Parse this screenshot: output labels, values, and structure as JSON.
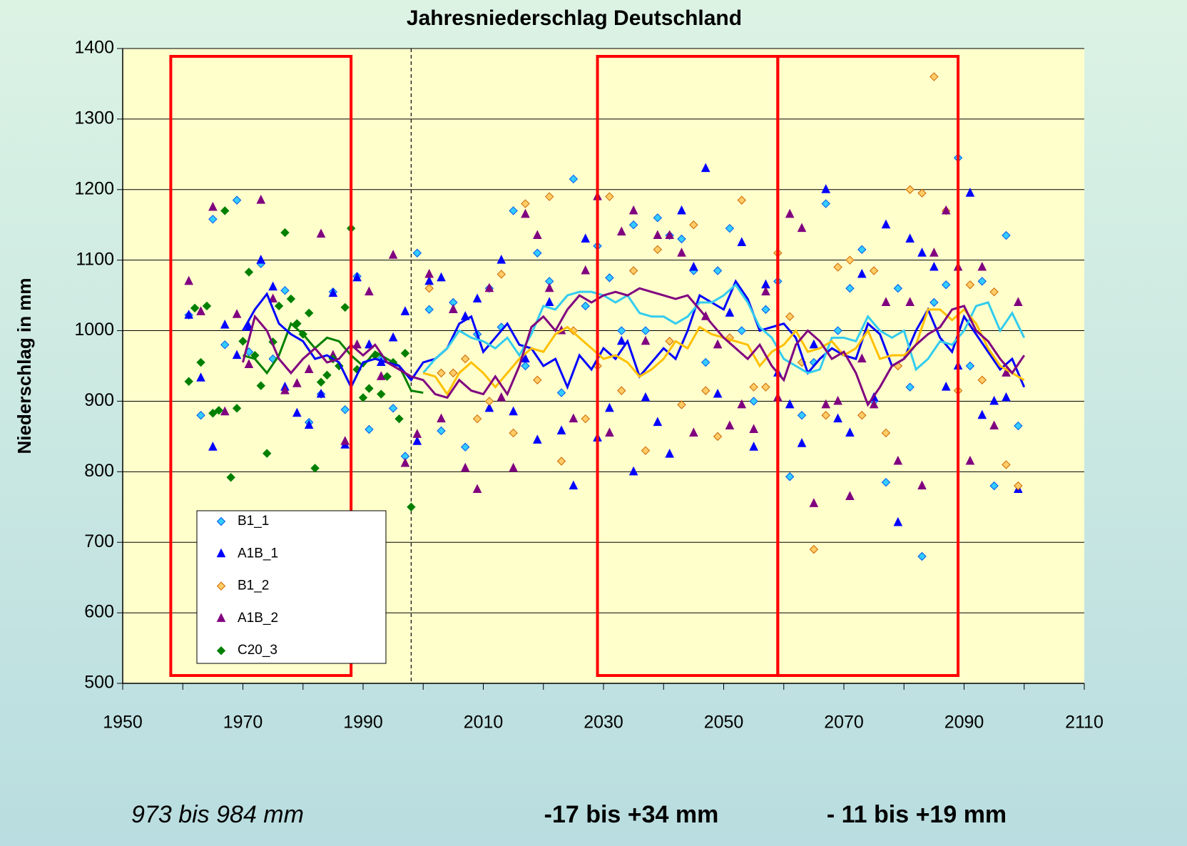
{
  "chart_data": {
    "type": "scatter",
    "title": "Jahresniederschlag Deutschland",
    "y_label": "Niederschlag in mm",
    "xlim": [
      1950,
      2110
    ],
    "xticks": [
      1950,
      1970,
      1990,
      2010,
      2030,
      2050,
      2070,
      2090,
      2110
    ],
    "ylim": [
      500,
      1400
    ],
    "yticks": [
      500,
      600,
      700,
      800,
      900,
      1000,
      1100,
      1200,
      1300,
      1400
    ],
    "grid": true,
    "highlight_ranges": [
      [
        1958,
        1988
      ],
      [
        2029,
        2059
      ],
      [
        2059,
        2089
      ]
    ],
    "divider_x": 1998,
    "annotations": [
      "973 bis 984 mm",
      "-17 bis +34 mm",
      "- 11 bis +19 mm"
    ],
    "series": [
      {
        "name": "B1_1",
        "marker": "diamond",
        "color": "#33ccff",
        "edge": "#0055ee",
        "x": [
          1961,
          1963,
          1965,
          1967,
          1969,
          1971,
          1973,
          1975,
          1977,
          1979,
          1981,
          1983,
          1985,
          1987,
          1989,
          1991,
          1993,
          1995,
          1997,
          1999,
          2001,
          2003,
          2005,
          2007,
          2009,
          2011,
          2013,
          2015,
          2017,
          2019,
          2021,
          2023,
          2025,
          2027,
          2029,
          2031,
          2033,
          2035,
          2037,
          2039,
          2041,
          2043,
          2045,
          2047,
          2049,
          2051,
          2053,
          2055,
          2057,
          2059,
          2061,
          2063,
          2065,
          2067,
          2069,
          2071,
          2073,
          2075,
          2077,
          2079,
          2081,
          2083,
          2085,
          2087,
          2089,
          2091,
          2093,
          2095,
          2097,
          2099
        ],
        "values": [
          1022,
          880,
          1158,
          980,
          1185,
          970,
          1095,
          960,
          1057,
          1010,
          870,
          910,
          1055,
          888,
          1077,
          860,
          960,
          890,
          822,
          1110,
          1030,
          858,
          1040,
          835,
          995,
          1060,
          1005,
          1170,
          950,
          1110,
          1070,
          912,
          1215,
          1035,
          1120,
          1075,
          1000,
          1150,
          1000,
          1160,
          1135,
          1130,
          1085,
          955,
          1085,
          1145,
          1000,
          900,
          1030,
          1070,
          793,
          880,
          955,
          1180,
          1000,
          1060,
          1115,
          900,
          785,
          1060,
          920,
          680,
          1040,
          1065,
          1245,
          950,
          1070,
          780,
          1135,
          865
        ]
      },
      {
        "name": "A1B_1",
        "marker": "triangle",
        "color": "#0000ff",
        "edge": "#0000ff",
        "x": [
          1961,
          1963,
          1965,
          1967,
          1969,
          1971,
          1973,
          1975,
          1977,
          1979,
          1981,
          1983,
          1985,
          1987,
          1989,
          1991,
          1993,
          1995,
          1997,
          1999,
          2001,
          2003,
          2005,
          2007,
          2009,
          2011,
          2013,
          2015,
          2017,
          2019,
          2021,
          2023,
          2025,
          2027,
          2029,
          2031,
          2033,
          2035,
          2037,
          2039,
          2041,
          2043,
          2045,
          2047,
          2049,
          2051,
          2053,
          2055,
          2057,
          2059,
          2061,
          2063,
          2065,
          2067,
          2069,
          2071,
          2073,
          2075,
          2077,
          2079,
          2081,
          2083,
          2085,
          2087,
          2089,
          2091,
          2093,
          2095,
          2097,
          2099
        ],
        "values": [
          1022,
          933,
          835,
          1008,
          965,
          1005,
          1100,
          1062,
          920,
          883,
          866,
          910,
          1053,
          838,
          1075,
          980,
          955,
          990,
          1027,
          843,
          1070,
          1075,
          1030,
          1020,
          1045,
          890,
          1100,
          885,
          960,
          845,
          1040,
          858,
          780,
          1130,
          848,
          890,
          985,
          800,
          905,
          870,
          825,
          1170,
          1090,
          1230,
          910,
          1025,
          1125,
          835,
          1065,
          940,
          895,
          840,
          980,
          1200,
          875,
          855,
          1080,
          905,
          1150,
          728,
          1130,
          1110,
          1090,
          920,
          950,
          1195,
          880,
          900,
          905,
          775
        ]
      },
      {
        "name": "B1_2",
        "marker": "diamond",
        "color": "#ffcc66",
        "edge": "#cc6600",
        "x": [
          2001,
          2003,
          2005,
          2007,
          2009,
          2011,
          2013,
          2015,
          2017,
          2019,
          2021,
          2023,
          2025,
          2027,
          2029,
          2031,
          2033,
          2035,
          2037,
          2039,
          2041,
          2043,
          2045,
          2047,
          2049,
          2051,
          2053,
          2055,
          2057,
          2059,
          2061,
          2063,
          2065,
          2067,
          2069,
          2071,
          2073,
          2075,
          2077,
          2079,
          2081,
          2083,
          2085,
          2087,
          2089,
          2091,
          2093,
          2095,
          2097,
          2099
        ],
        "values": [
          1060,
          940,
          940,
          960,
          875,
          900,
          1080,
          855,
          1180,
          930,
          1190,
          815,
          1000,
          875,
          950,
          1190,
          915,
          1085,
          830,
          1115,
          985,
          895,
          1150,
          915,
          850,
          990,
          1185,
          920,
          920,
          1110,
          1020,
          955,
          690,
          880,
          1090,
          1100,
          880,
          1085,
          855,
          950,
          1200,
          1195,
          1360,
          1170,
          915,
          1065,
          930,
          1055,
          810,
          780
        ]
      },
      {
        "name": "A1B_2",
        "marker": "triangle",
        "color": "#800080",
        "edge": "#800080",
        "x": [
          1961,
          1963,
          1965,
          1967,
          1969,
          1971,
          1973,
          1975,
          1977,
          1979,
          1981,
          1983,
          1985,
          1987,
          1989,
          1991,
          1993,
          1995,
          1997,
          1999,
          2001,
          2003,
          2005,
          2007,
          2009,
          2011,
          2013,
          2015,
          2017,
          2019,
          2021,
          2023,
          2025,
          2027,
          2029,
          2031,
          2033,
          2035,
          2037,
          2039,
          2041,
          2043,
          2045,
          2047,
          2049,
          2051,
          2053,
          2055,
          2057,
          2059,
          2061,
          2063,
          2065,
          2067,
          2069,
          2071,
          2073,
          2075,
          2077,
          2079,
          2081,
          2083,
          2085,
          2087,
          2089,
          2091,
          2093,
          2095,
          2097,
          2099
        ],
        "values": [
          1070,
          1027,
          1175,
          885,
          1023,
          952,
          1185,
          1045,
          915,
          925,
          945,
          1137,
          965,
          843,
          980,
          1055,
          935,
          1107,
          812,
          853,
          1080,
          875,
          1030,
          805,
          775,
          1060,
          905,
          805,
          1165,
          1135,
          1060,
          1000,
          875,
          1085,
          1190,
          855,
          1140,
          1170,
          985,
          1135,
          1135,
          1110,
          855,
          1020,
          980,
          865,
          895,
          860,
          1055,
          905,
          1165,
          1145,
          755,
          895,
          900,
          765,
          960,
          895,
          1040,
          815,
          1040,
          780,
          1110,
          1170,
          1090,
          815,
          1090,
          865,
          940,
          1040
        ]
      },
      {
        "name": "C20_3",
        "marker": "diamond",
        "color": "#008000",
        "edge": "#008000",
        "x": [
          1961,
          1962,
          1963,
          1964,
          1965,
          1966,
          1967,
          1968,
          1969,
          1970,
          1971,
          1972,
          1973,
          1974,
          1975,
          1976,
          1977,
          1978,
          1979,
          1980,
          1981,
          1982,
          1983,
          1984,
          1985,
          1986,
          1987,
          1988,
          1989,
          1990,
          1991,
          1992,
          1993,
          1994,
          1995,
          1996,
          1997,
          1998
        ],
        "values": [
          928,
          1032,
          955,
          1035,
          883,
          887,
          1170,
          792,
          890,
          985,
          1083,
          965,
          922,
          826,
          984,
          1035,
          1139,
          1045,
          1010,
          995,
          1025,
          805,
          927,
          937,
          960,
          950,
          1033,
          1145,
          945,
          905,
          918,
          965,
          910,
          935,
          955,
          875,
          968,
          750
        ]
      }
    ],
    "lines": [
      {
        "color": "#008000",
        "x": [
          1970,
          1972,
          1974,
          1976,
          1978,
          1980,
          1982,
          1984,
          1986,
          1988,
          1990,
          1992,
          1994,
          1996,
          1998,
          2000
        ],
        "values": [
          965,
          960,
          940,
          965,
          1010,
          995,
          975,
          990,
          985,
          965,
          950,
          970,
          960,
          950,
          915,
          912
        ]
      },
      {
        "color": "#0000ff",
        "x": [
          1970,
          1972,
          1974,
          1976,
          1978,
          1980,
          1982,
          1984,
          1986,
          1988,
          1990,
          1992,
          1994,
          1996,
          1998,
          2000,
          2002,
          2004,
          2006,
          2008,
          2010,
          2012,
          2014,
          2016,
          2018,
          2020,
          2022,
          2024,
          2026,
          2028,
          2030,
          2032,
          2034,
          2036,
          2038,
          2040,
          2042,
          2044,
          2046,
          2048,
          2050,
          2052,
          2054,
          2056,
          2058,
          2060,
          2062,
          2064,
          2066,
          2068,
          2070,
          2072,
          2074,
          2076,
          2078,
          2080,
          2082,
          2084,
          2086,
          2088,
          2090,
          2092,
          2094,
          2096,
          2098,
          2100
        ],
        "values": [
          1000,
          1030,
          1052,
          1010,
          995,
          985,
          960,
          965,
          955,
          920,
          955,
          960,
          955,
          950,
          930,
          955,
          960,
          975,
          1010,
          1020,
          970,
          990,
          1010,
          980,
          975,
          950,
          960,
          920,
          965,
          945,
          975,
          960,
          985,
          935,
          955,
          975,
          960,
          1000,
          1050,
          1040,
          1030,
          1070,
          1045,
          1000,
          1005,
          1010,
          990,
          940,
          960,
          975,
          965,
          960,
          1010,
          995,
          950,
          960,
          1000,
          1030,
          990,
          970,
          1020,
          995,
          970,
          945,
          960,
          920
        ]
      },
      {
        "color": "#33ccee",
        "x": [
          2000,
          2002,
          2004,
          2006,
          2008,
          2010,
          2012,
          2014,
          2016,
          2018,
          2020,
          2022,
          2024,
          2026,
          2028,
          2030,
          2032,
          2034,
          2036,
          2038,
          2040,
          2042,
          2044,
          2046,
          2048,
          2050,
          2052,
          2054,
          2056,
          2058,
          2060,
          2062,
          2064,
          2066,
          2068,
          2070,
          2072,
          2074,
          2076,
          2078,
          2080,
          2082,
          2084,
          2086,
          2088,
          2090,
          2092,
          2094,
          2096,
          2098,
          2100
        ],
        "values": [
          940,
          960,
          975,
          1000,
          990,
          985,
          975,
          990,
          965,
          995,
          1035,
          1030,
          1050,
          1055,
          1055,
          1050,
          1040,
          1050,
          1025,
          1020,
          1020,
          1010,
          1020,
          1040,
          1040,
          1050,
          1065,
          1040,
          1005,
          990,
          960,
          950,
          940,
          945,
          990,
          990,
          985,
          1020,
          1000,
          990,
          1000,
          945,
          960,
          985,
          980,
          1000,
          1035,
          1040,
          1000,
          1025,
          990
        ]
      },
      {
        "color": "#ffc000",
        "x": [
          2000,
          2002,
          2004,
          2006,
          2008,
          2010,
          2012,
          2014,
          2016,
          2018,
          2020,
          2022,
          2024,
          2026,
          2028,
          2030,
          2032,
          2034,
          2036,
          2038,
          2040,
          2042,
          2044,
          2046,
          2048,
          2050,
          2052,
          2054,
          2056,
          2058,
          2060,
          2062,
          2064,
          2066,
          2068,
          2070,
          2072,
          2074,
          2076,
          2078,
          2080,
          2082,
          2084,
          2086,
          2088,
          2090,
          2092,
          2094,
          2096,
          2098,
          2100
        ],
        "values": [
          940,
          935,
          910,
          940,
          955,
          940,
          920,
          940,
          960,
          975,
          970,
          995,
          1005,
          990,
          975,
          960,
          965,
          955,
          935,
          945,
          960,
          985,
          975,
          1005,
          995,
          990,
          985,
          980,
          950,
          970,
          980,
          1000,
          970,
          975,
          985,
          965,
          975,
          1000,
          960,
          965,
          965,
          980,
          1030,
          1030,
          1015,
          1030,
          1010,
          975,
          950,
          940,
          930
        ]
      },
      {
        "color": "#800080",
        "x": [
          1970,
          1972,
          1974,
          1976,
          1978,
          1980,
          1982,
          1984,
          1986,
          1988,
          1990,
          1992,
          1994,
          1996,
          1998,
          2000,
          2002,
          2004,
          2006,
          2008,
          2010,
          2012,
          2014,
          2016,
          2018,
          2020,
          2022,
          2024,
          2026,
          2028,
          2030,
          2032,
          2034,
          2036,
          2038,
          2040,
          2042,
          2044,
          2046,
          2048,
          2050,
          2052,
          2054,
          2056,
          2058,
          2060,
          2062,
          2064,
          2066,
          2068,
          2070,
          2072,
          2074,
          2076,
          2078,
          2080,
          2082,
          2084,
          2086,
          2088,
          2090,
          2092,
          2094,
          2096,
          2098,
          2100
        ],
        "values": [
          955,
          1020,
          1000,
          960,
          940,
          960,
          975,
          955,
          960,
          980,
          965,
          980,
          955,
          945,
          935,
          930,
          910,
          905,
          930,
          915,
          910,
          935,
          910,
          950,
          1005,
          1020,
          1000,
          1030,
          1050,
          1040,
          1050,
          1055,
          1050,
          1060,
          1055,
          1050,
          1045,
          1050,
          1030,
          1010,
          990,
          975,
          960,
          980,
          950,
          930,
          980,
          1000,
          985,
          960,
          970,
          940,
          895,
          920,
          950,
          960,
          980,
          995,
          1005,
          1030,
          1035,
          1000,
          985,
          960,
          940,
          965
        ]
      }
    ]
  }
}
